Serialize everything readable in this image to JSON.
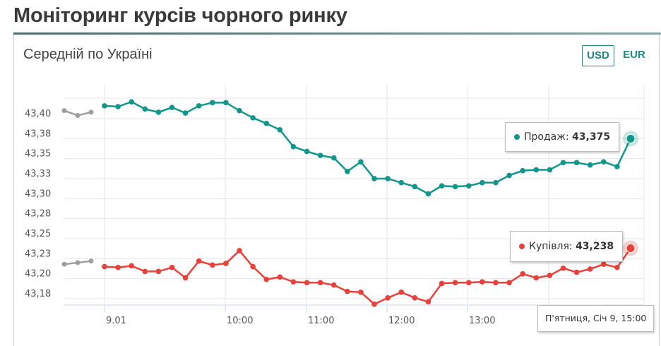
{
  "header": {
    "title": "Моніторинг курсів чорного ринку"
  },
  "card": {
    "title": "Середній по Україні",
    "currency_buttons": [
      {
        "label": "USD",
        "active": true
      },
      {
        "label": "EUR",
        "active": false
      }
    ]
  },
  "colors": {
    "sell": "#12968a",
    "buy": "#e8403b",
    "previous": "#9e9e9e",
    "accent": "#1c8a80"
  },
  "tooltips": {
    "sell_label": "Продаж:",
    "sell_value": "43,375",
    "buy_label": "Купівля:",
    "buy_value": "43,238",
    "date": "П'ятниця, Січ 9, 15:00"
  },
  "chart_data": {
    "type": "line",
    "title": "Середній по Україні",
    "xlabel": "",
    "ylabel": "",
    "y_ticks": [
      "43,18",
      "43,20",
      "43,23",
      "43,25",
      "43,28",
      "43,30",
      "43,33",
      "43,35",
      "43,38",
      "43,40"
    ],
    "x_tick_labels": [
      "9.01",
      "10:00",
      "11:00",
      "12:00",
      "13:00"
    ],
    "ylim": [
      43.16,
      43.43
    ],
    "grid": true,
    "previous_day": {
      "sell": [
        43.41,
        43.404,
        43.408
      ],
      "buy": [
        43.218,
        43.22,
        43.222
      ]
    },
    "series": [
      {
        "name": "Продаж",
        "color": "#12968a",
        "values": [
          43.416,
          43.415,
          43.421,
          43.412,
          43.408,
          43.414,
          43.407,
          43.416,
          43.42,
          43.42,
          43.41,
          43.401,
          43.394,
          43.386,
          43.365,
          43.359,
          43.354,
          43.351,
          43.334,
          43.346,
          43.325,
          43.325,
          43.32,
          43.315,
          43.306,
          43.316,
          43.315,
          43.316,
          43.32,
          43.32,
          43.329,
          43.335,
          43.336,
          43.336,
          43.345,
          43.345,
          43.342,
          43.346,
          43.34,
          43.375
        ]
      },
      {
        "name": "Купівля",
        "color": "#e8403b",
        "values": [
          43.215,
          43.214,
          43.216,
          43.209,
          43.209,
          43.214,
          43.201,
          43.222,
          43.217,
          43.219,
          43.235,
          43.215,
          43.199,
          43.202,
          43.196,
          43.195,
          43.195,
          43.192,
          43.184,
          43.183,
          43.168,
          43.176,
          43.183,
          43.176,
          43.171,
          43.194,
          43.195,
          43.195,
          43.196,
          43.195,
          43.195,
          43.206,
          43.201,
          43.204,
          43.213,
          43.208,
          43.212,
          43.218,
          43.214,
          43.238
        ]
      }
    ]
  }
}
